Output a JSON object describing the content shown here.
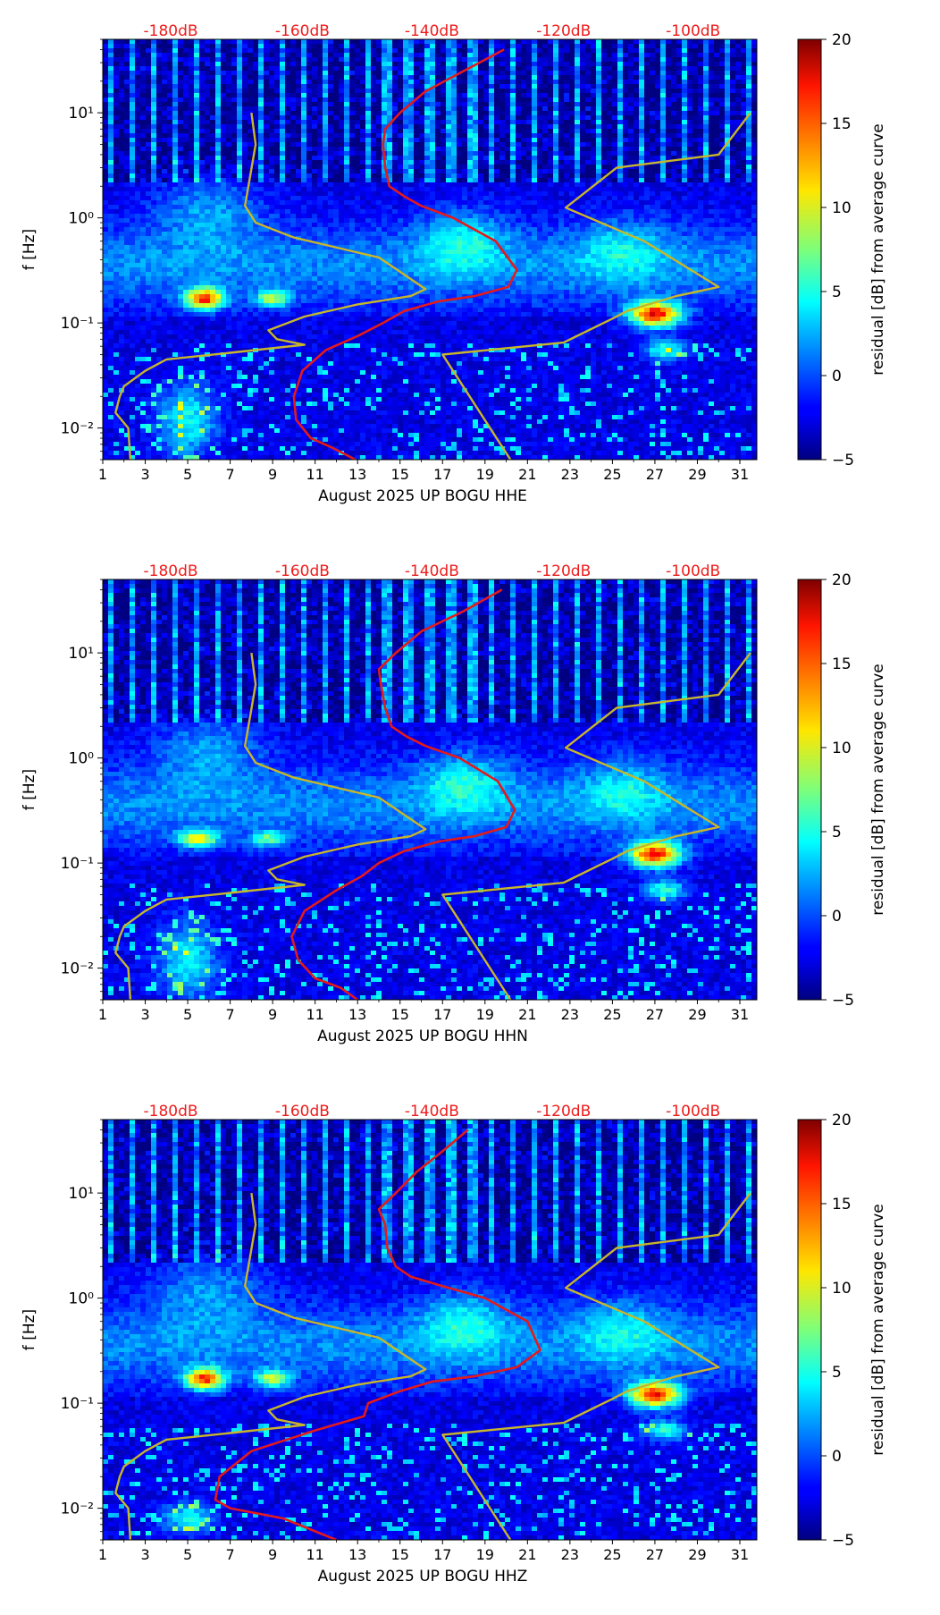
{
  "colors": {
    "db_label": "#ee1c1c",
    "red_curve": "#e41a1a",
    "gold_curve": "#c8b62a",
    "axis": "#000000"
  },
  "colorbar": {
    "label": "residual [dB] from average curve",
    "ticks": [
      "20",
      "15",
      "10",
      "5",
      "0",
      "−5"
    ],
    "range": [
      -5,
      20
    ]
  },
  "chart_data": [
    {
      "type": "heatmap",
      "title": "",
      "xlabel": "August 2025 UP BOGU  HHE",
      "ylabel": "f [Hz]",
      "xlim": [
        1,
        31.8
      ],
      "ylim": [
        0.005,
        50
      ],
      "yscale": "log",
      "xtick_labels": [
        "1",
        "3",
        "5",
        "7",
        "9",
        "11",
        "13",
        "15",
        "17",
        "19",
        "21",
        "23",
        "25",
        "27",
        "29",
        "31"
      ],
      "ytick_labels": [
        "10⁻²",
        "10⁻¹",
        "10⁰",
        "10¹"
      ],
      "db_axis_labels": [
        "-180dB",
        "-160dB",
        "-140dB",
        "-120dB",
        "-100dB"
      ],
      "db_axis_positions": [
        4.2,
        10.4,
        16.5,
        22.7,
        28.8
      ],
      "blobs": [
        {
          "x": 5.8,
          "f": 0.17,
          "sx": 0.9,
          "sf": 0.1,
          "v": 17
        },
        {
          "x": 9.0,
          "f": 0.17,
          "sx": 0.8,
          "sf": 0.08,
          "v": 10
        },
        {
          "x": 27.0,
          "f": 0.12,
          "sx": 1.2,
          "sf": 0.12,
          "v": 19
        },
        {
          "x": 27.5,
          "f": 0.055,
          "sx": 1.0,
          "sf": 0.1,
          "v": 8
        },
        {
          "x": 5.0,
          "f": 0.012,
          "sx": 1.4,
          "sf": 0.35,
          "v": 7
        },
        {
          "x": 6.0,
          "f": 1.2,
          "sx": 2.5,
          "sf": 0.35,
          "v": 4
        },
        {
          "x": 18.0,
          "f": 0.6,
          "sx": 2.0,
          "sf": 0.3,
          "v": 5
        },
        {
          "x": 25.5,
          "f": 0.5,
          "sx": 2.0,
          "sf": 0.3,
          "v": 4
        }
      ],
      "series": [
        {
          "name": "station_noise_psd",
          "color": "red",
          "x": [
            19.9,
            18.0,
            16.2,
            15.0,
            14.3,
            14.2,
            14.3,
            14.5,
            15.2,
            16.0,
            17.5,
            19.5,
            20.5,
            20.1,
            18.5,
            16.8,
            15.2,
            14.2,
            13.0,
            11.5,
            10.4,
            10.0,
            10.1,
            10.8,
            11.8,
            12.9
          ],
          "f": [
            40.0,
            25.0,
            16.0,
            10.0,
            7.0,
            5.0,
            3.0,
            2.0,
            1.6,
            1.3,
            1.0,
            0.6,
            0.32,
            0.22,
            0.18,
            0.16,
            0.13,
            0.1,
            0.075,
            0.055,
            0.035,
            0.02,
            0.012,
            0.008,
            0.0065,
            0.005
          ]
        },
        {
          "name": "noise_model_low",
          "color": "gold",
          "x": [
            8.0,
            8.2,
            7.7,
            8.2,
            10.0,
            14.0,
            16.2,
            15.5,
            13.0,
            10.5,
            8.8,
            9.2,
            10.5,
            7.0,
            4.0,
            3.0,
            2.0,
            1.8,
            1.6,
            2.2,
            2.3
          ],
          "f": [
            10.0,
            5.0,
            1.3,
            0.9,
            0.65,
            0.42,
            0.21,
            0.18,
            0.15,
            0.115,
            0.085,
            0.07,
            0.062,
            0.052,
            0.045,
            0.035,
            0.025,
            0.02,
            0.014,
            0.01,
            0.005
          ]
        },
        {
          "name": "noise_model_high",
          "color": "gold",
          "x": [
            31.5,
            30.0,
            25.2,
            22.8,
            26.5,
            30.0,
            28.0,
            25.7,
            25.0,
            22.7,
            17.0,
            20.2
          ],
          "f": [
            10.0,
            4.0,
            3.0,
            1.25,
            0.6,
            0.22,
            0.18,
            0.13,
            0.11,
            0.065,
            0.05,
            0.005
          ]
        }
      ]
    },
    {
      "type": "heatmap",
      "title": "",
      "xlabel": "August 2025 UP BOGU  HHN",
      "ylabel": "f [Hz]",
      "xlim": [
        1,
        31.8
      ],
      "ylim": [
        0.005,
        50
      ],
      "yscale": "log",
      "xtick_labels": [
        "1",
        "3",
        "5",
        "7",
        "9",
        "11",
        "13",
        "15",
        "17",
        "19",
        "21",
        "23",
        "25",
        "27",
        "29",
        "31"
      ],
      "ytick_labels": [
        "10⁻²",
        "10⁻¹",
        "10⁰",
        "10¹"
      ],
      "db_axis_labels": [
        "-180dB",
        "-160dB",
        "-140dB",
        "-120dB",
        "-100dB"
      ],
      "db_axis_positions": [
        4.2,
        10.4,
        16.5,
        22.7,
        28.8
      ],
      "blobs": [
        {
          "x": 5.5,
          "f": 0.17,
          "sx": 0.9,
          "sf": 0.08,
          "v": 12
        },
        {
          "x": 8.8,
          "f": 0.17,
          "sx": 0.8,
          "sf": 0.07,
          "v": 8
        },
        {
          "x": 27.0,
          "f": 0.12,
          "sx": 1.2,
          "sf": 0.12,
          "v": 19
        },
        {
          "x": 27.5,
          "f": 0.055,
          "sx": 1.0,
          "sf": 0.1,
          "v": 8
        },
        {
          "x": 5.0,
          "f": 0.012,
          "sx": 1.4,
          "sf": 0.35,
          "v": 7
        },
        {
          "x": 6.0,
          "f": 1.2,
          "sx": 2.5,
          "sf": 0.35,
          "v": 4
        },
        {
          "x": 18.0,
          "f": 0.6,
          "sx": 2.0,
          "sf": 0.3,
          "v": 5
        },
        {
          "x": 25.5,
          "f": 0.5,
          "sx": 2.0,
          "sf": 0.3,
          "v": 4
        }
      ],
      "series": [
        {
          "name": "station_noise_psd",
          "color": "red",
          "x": [
            19.8,
            18.0,
            16.0,
            14.8,
            14.0,
            14.1,
            14.3,
            14.6,
            15.3,
            16.2,
            17.8,
            19.6,
            20.4,
            20.0,
            18.5,
            16.8,
            15.2,
            14.0,
            13.2,
            12.0,
            10.5,
            9.9,
            10.2,
            11.0,
            12.2,
            13.0
          ],
          "f": [
            40.0,
            25.0,
            16.0,
            10.0,
            7.0,
            5.0,
            3.0,
            2.0,
            1.6,
            1.3,
            1.0,
            0.6,
            0.32,
            0.22,
            0.18,
            0.16,
            0.13,
            0.1,
            0.075,
            0.055,
            0.035,
            0.02,
            0.012,
            0.008,
            0.0065,
            0.005
          ]
        },
        {
          "name": "noise_model_low",
          "color": "gold",
          "x": [
            8.0,
            8.2,
            7.7,
            8.2,
            10.0,
            14.0,
            16.2,
            15.5,
            13.0,
            10.5,
            8.8,
            9.2,
            10.5,
            7.0,
            4.0,
            3.0,
            2.0,
            1.8,
            1.6,
            2.2,
            2.3
          ],
          "f": [
            10.0,
            5.0,
            1.3,
            0.9,
            0.65,
            0.42,
            0.21,
            0.18,
            0.15,
            0.115,
            0.085,
            0.07,
            0.062,
            0.052,
            0.045,
            0.035,
            0.025,
            0.02,
            0.014,
            0.01,
            0.005
          ]
        },
        {
          "name": "noise_model_high",
          "color": "gold",
          "x": [
            31.5,
            30.0,
            25.2,
            22.8,
            26.5,
            30.0,
            28.0,
            25.7,
            25.0,
            22.7,
            17.0,
            20.2
          ],
          "f": [
            10.0,
            4.0,
            3.0,
            1.25,
            0.6,
            0.22,
            0.18,
            0.13,
            0.11,
            0.065,
            0.05,
            0.005
          ]
        }
      ]
    },
    {
      "type": "heatmap",
      "title": "",
      "xlabel": "August 2025 UP BOGU  HHZ",
      "ylabel": "f [Hz]",
      "xlim": [
        1,
        31.8
      ],
      "ylim": [
        0.005,
        50
      ],
      "yscale": "log",
      "xtick_labels": [
        "1",
        "3",
        "5",
        "7",
        "9",
        "11",
        "13",
        "15",
        "17",
        "19",
        "21",
        "23",
        "25",
        "27",
        "29",
        "31"
      ],
      "ytick_labels": [
        "10⁻²",
        "10⁻¹",
        "10⁰",
        "10¹"
      ],
      "db_axis_labels": [
        "-180dB",
        "-160dB",
        "-140dB",
        "-120dB",
        "-100dB"
      ],
      "db_axis_positions": [
        4.2,
        10.4,
        16.5,
        22.7,
        28.8
      ],
      "blobs": [
        {
          "x": 5.8,
          "f": 0.17,
          "sx": 0.9,
          "sf": 0.1,
          "v": 17
        },
        {
          "x": 9.0,
          "f": 0.17,
          "sx": 0.8,
          "sf": 0.08,
          "v": 11
        },
        {
          "x": 27.0,
          "f": 0.12,
          "sx": 1.2,
          "sf": 0.12,
          "v": 19
        },
        {
          "x": 27.5,
          "f": 0.055,
          "sx": 1.0,
          "sf": 0.1,
          "v": 8
        },
        {
          "x": 5.0,
          "f": 0.008,
          "sx": 1.2,
          "sf": 0.15,
          "v": 7
        },
        {
          "x": 6.0,
          "f": 1.2,
          "sx": 2.5,
          "sf": 0.35,
          "v": 4
        },
        {
          "x": 18.0,
          "f": 0.6,
          "sx": 2.0,
          "sf": 0.3,
          "v": 5
        },
        {
          "x": 25.5,
          "f": 0.5,
          "sx": 2.0,
          "sf": 0.3,
          "v": 4
        }
      ],
      "series": [
        {
          "name": "station_noise_psd",
          "color": "red",
          "x": [
            18.2,
            17.0,
            15.8,
            14.8,
            14.0,
            14.3,
            14.4,
            14.8,
            15.5,
            17.0,
            19.0,
            21.0,
            21.6,
            20.5,
            18.5,
            16.5,
            15.0,
            13.5,
            13.3,
            11.0,
            8.0,
            6.5,
            6.3,
            7.0,
            9.5,
            12.0
          ],
          "f": [
            40.0,
            25.0,
            16.0,
            10.0,
            7.0,
            5.0,
            3.0,
            2.0,
            1.6,
            1.3,
            1.0,
            0.6,
            0.32,
            0.22,
            0.18,
            0.16,
            0.13,
            0.1,
            0.075,
            0.055,
            0.035,
            0.02,
            0.012,
            0.01,
            0.008,
            0.005
          ]
        },
        {
          "name": "noise_model_low",
          "color": "gold",
          "x": [
            8.0,
            8.2,
            7.7,
            8.2,
            10.0,
            14.0,
            16.2,
            15.5,
            13.0,
            10.5,
            8.8,
            9.2,
            10.5,
            7.0,
            4.0,
            3.0,
            2.0,
            1.8,
            1.6,
            2.2,
            2.3
          ],
          "f": [
            10.0,
            5.0,
            1.3,
            0.9,
            0.65,
            0.42,
            0.21,
            0.18,
            0.15,
            0.115,
            0.085,
            0.07,
            0.062,
            0.052,
            0.045,
            0.035,
            0.025,
            0.02,
            0.014,
            0.01,
            0.005
          ]
        },
        {
          "name": "noise_model_high",
          "color": "gold",
          "x": [
            31.5,
            30.0,
            25.2,
            22.8,
            26.5,
            30.0,
            28.0,
            25.7,
            25.0,
            22.7,
            17.0,
            20.2
          ],
          "f": [
            10.0,
            4.0,
            3.0,
            1.25,
            0.6,
            0.22,
            0.18,
            0.13,
            0.11,
            0.065,
            0.05,
            0.005
          ]
        }
      ]
    }
  ]
}
